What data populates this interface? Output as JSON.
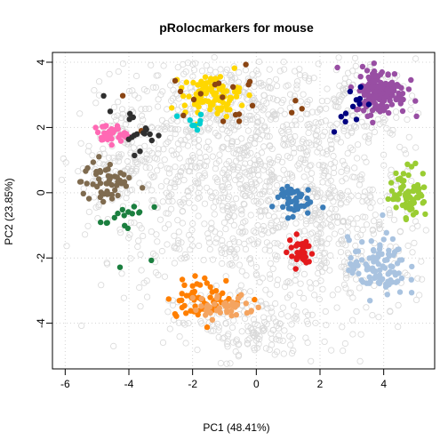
{
  "chart_data": {
    "type": "scatter",
    "title": "pRolocmarkers for mouse",
    "xlabel": "PC1 (48.41%)",
    "ylabel": "PC2 (23.85%)",
    "xlim": [
      -6.4,
      5.6
    ],
    "ylim": [
      -5.4,
      4.3
    ],
    "x_ticks": [
      -6,
      -4,
      -2,
      0,
      2,
      4
    ],
    "y_ticks": [
      -4,
      -2,
      0,
      2,
      4
    ],
    "grid": true,
    "legend": "none",
    "background_points": {
      "color": "#d9d9d9",
      "style": "open-circle",
      "regions": [
        {
          "cx": -0.5,
          "cy": 0.5,
          "sx": 2.2,
          "sy": 1.8,
          "n": 900
        },
        {
          "cx": 2.5,
          "cy": -1.5,
          "sx": 1.5,
          "sy": 1.4,
          "n": 300
        },
        {
          "cx": -4.0,
          "cy": 1.0,
          "sx": 0.8,
          "sy": 1.0,
          "n": 150
        },
        {
          "cx": -1.0,
          "cy": 3.0,
          "sx": 1.2,
          "sy": 0.5,
          "n": 150
        },
        {
          "cx": 3.0,
          "cy": 2.5,
          "sx": 1.0,
          "sy": 0.8,
          "n": 120
        },
        {
          "cx": -0.5,
          "cy": -3.8,
          "sx": 1.2,
          "sy": 0.6,
          "n": 120
        },
        {
          "cx": 0.0,
          "cy": -4.6,
          "sx": 0.5,
          "sy": 0.3,
          "n": 40
        }
      ]
    },
    "marker_clusters": [
      {
        "color": "#984EA3",
        "cx": 3.9,
        "cy": 3.1,
        "sx": 0.4,
        "sy": 0.35,
        "n": 160
      },
      {
        "color": "#000080",
        "cx": 2.9,
        "cy": 2.7,
        "sx": 0.3,
        "sy": 0.35,
        "n": 12
      },
      {
        "color": "#FFD700",
        "cx": -1.4,
        "cy": 3.0,
        "sx": 0.45,
        "sy": 0.3,
        "n": 90
      },
      {
        "color": "#8B4513",
        "cx": -1.0,
        "cy": 2.8,
        "sx": 1.3,
        "sy": 0.55,
        "n": 22
      },
      {
        "color": "#00CED1",
        "cx": -2.0,
        "cy": 2.2,
        "sx": 0.3,
        "sy": 0.15,
        "n": 8
      },
      {
        "color": "#FF69B4",
        "cx": -4.6,
        "cy": 1.8,
        "sx": 0.25,
        "sy": 0.15,
        "n": 35
      },
      {
        "color": "#2F2F2F",
        "cx": -3.9,
        "cy": 1.9,
        "sx": 0.45,
        "sy": 0.3,
        "n": 18
      },
      {
        "color": "#7F6B4F",
        "cx": -4.7,
        "cy": 0.3,
        "sx": 0.4,
        "sy": 0.35,
        "n": 50
      },
      {
        "color": "#1B7F3F",
        "cx": -4.2,
        "cy": -0.8,
        "sx": 0.4,
        "sy": 0.5,
        "n": 18
      },
      {
        "color": "#3A7CB8",
        "cx": 1.1,
        "cy": -0.2,
        "sx": 0.3,
        "sy": 0.25,
        "n": 45
      },
      {
        "color": "#E41A1C",
        "cx": 1.4,
        "cy": -1.8,
        "sx": 0.2,
        "sy": 0.25,
        "n": 30
      },
      {
        "color": "#A9C3E0",
        "cx": 3.8,
        "cy": -2.3,
        "sx": 0.45,
        "sy": 0.45,
        "n": 100
      },
      {
        "color": "#9ACD32",
        "cx": 4.8,
        "cy": 0.0,
        "sx": 0.3,
        "sy": 0.4,
        "n": 70
      },
      {
        "color": "#FF7F00",
        "cx": -1.6,
        "cy": -3.2,
        "sx": 0.6,
        "sy": 0.3,
        "n": 60
      },
      {
        "color": "#F4A460",
        "cx": -1.0,
        "cy": -3.5,
        "sx": 0.5,
        "sy": 0.2,
        "n": 40
      }
    ]
  }
}
